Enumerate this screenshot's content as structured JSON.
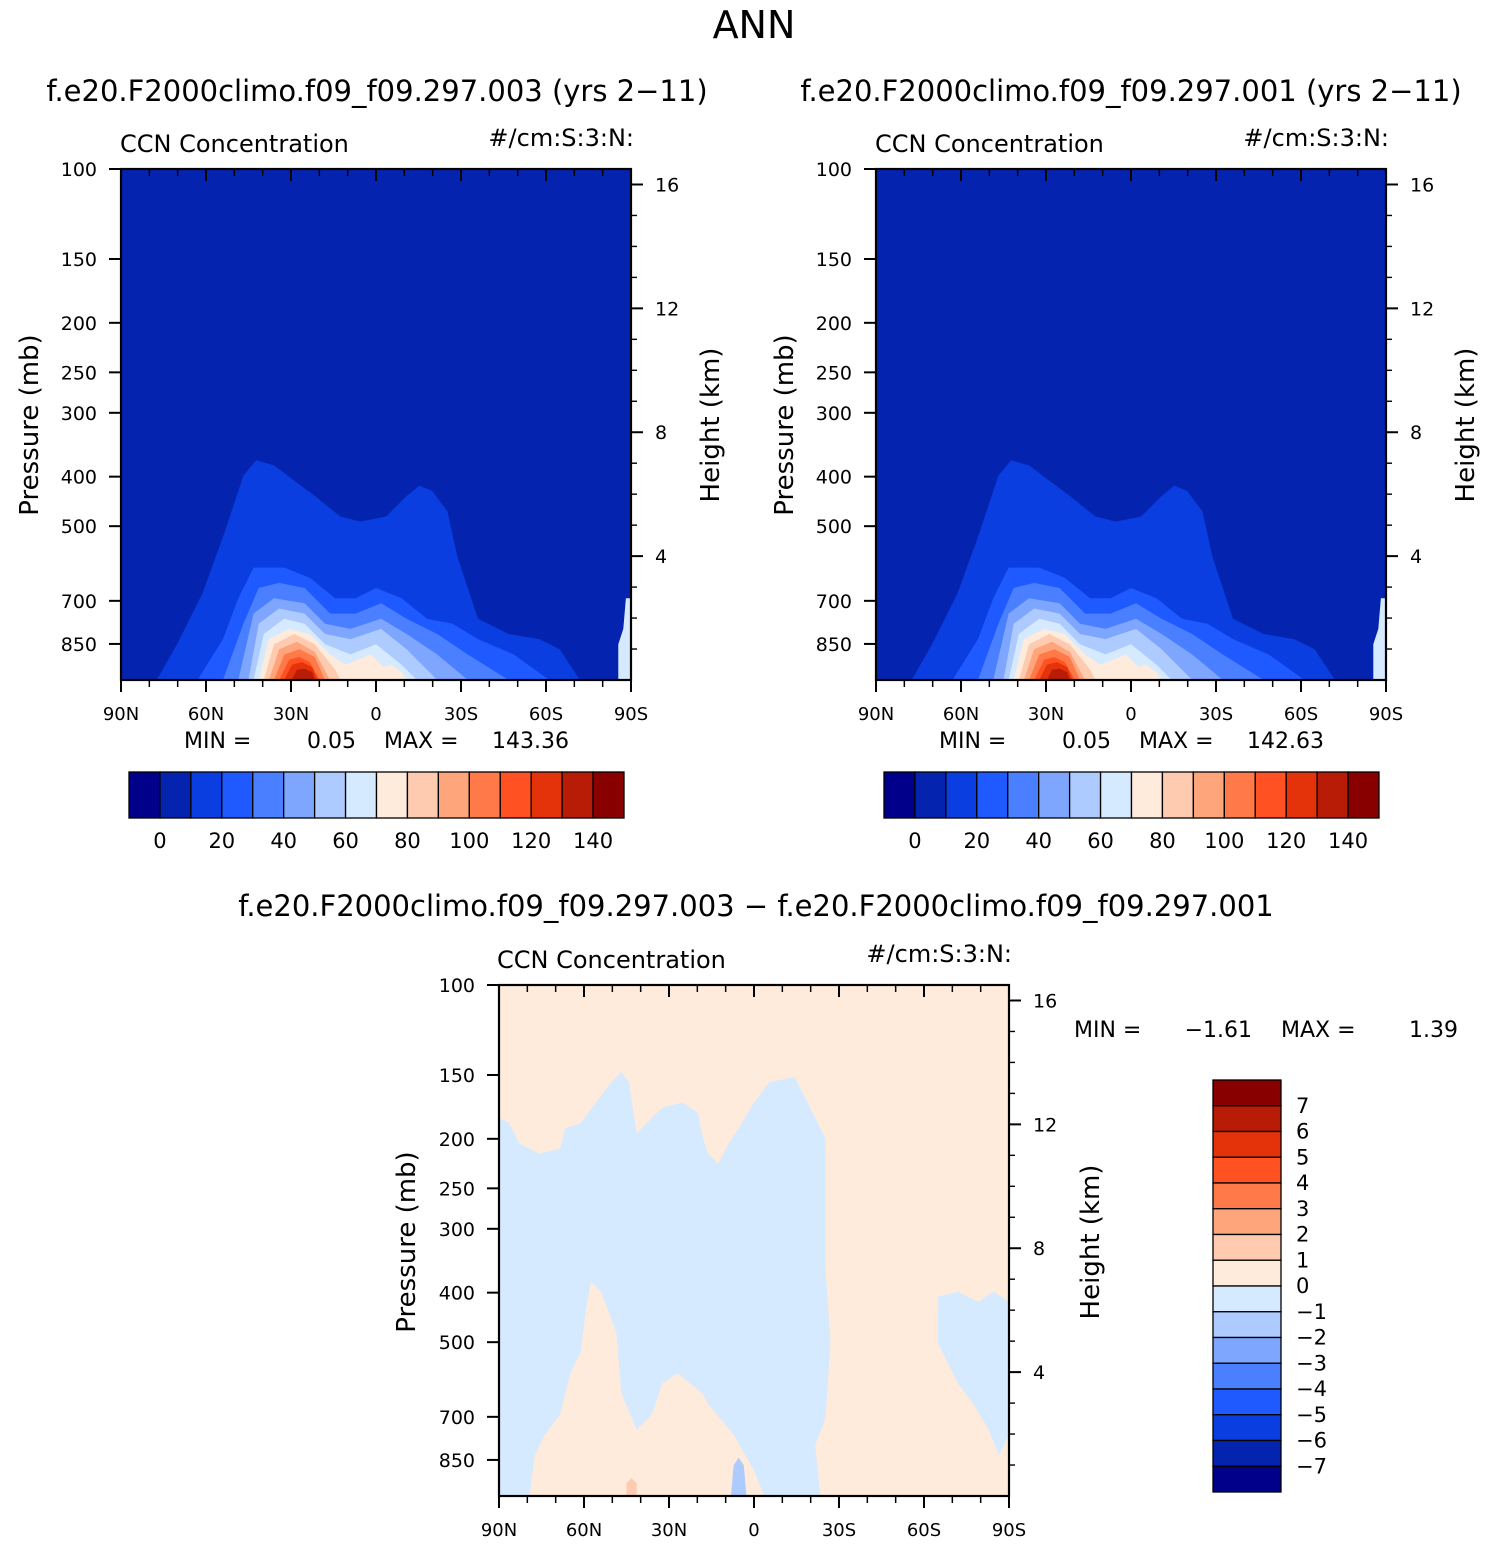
{
  "main_title": "ANN",
  "panels": [
    {
      "heading": "f.e20.F2000climo.f09_f09.297.003 (yrs 2−11)",
      "left_label": "CCN Concentration",
      "right_label": "#/cm:S:3:N:",
      "ylabel_left": "Pressure (mb)",
      "ylabel_right": "Height (km)",
      "stats": {
        "min_label": "MIN =",
        "min_value": "0.05",
        "max_label": "MAX =",
        "max_value": "143.36"
      }
    },
    {
      "heading": "f.e20.F2000climo.f09_f09.297.001 (yrs 2−11)",
      "left_label": "CCN Concentration",
      "right_label": "#/cm:S:3:N:",
      "ylabel_left": "Pressure (mb)",
      "ylabel_right": "Height (km)",
      "stats": {
        "min_label": "MIN =",
        "min_value": "0.05",
        "max_label": "MAX =",
        "max_value": "142.63"
      }
    },
    {
      "heading": "f.e20.F2000climo.f09_f09.297.003 − f.e20.F2000climo.f09_f09.297.001",
      "left_label": "CCN Concentration",
      "right_label": "#/cm:S:3:N:",
      "ylabel_left": "Pressure (mb)",
      "ylabel_right": "Height (km)",
      "stats": {
        "min_label": "MIN =",
        "min_value": "−1.61",
        "max_label": "MAX =",
        "max_value": "1.39"
      }
    }
  ],
  "colorbars": [
    {
      "colors": [
        "#00008b",
        "#0424b0",
        "#0a3ee0",
        "#1e5aff",
        "#4a80ff",
        "#7ea6ff",
        "#aecbff",
        "#d6eaff",
        "#ffebdb",
        "#ffcbb0",
        "#ffa57c",
        "#ff7a48",
        "#ff5122",
        "#e4320a",
        "#b81c07",
        "#880000"
      ],
      "labels": [
        "0",
        "20",
        "40",
        "60",
        "80",
        "100",
        "120",
        "140"
      ]
    },
    {
      "colors": [
        "#00008b",
        "#0424b0",
        "#0a3ee0",
        "#1e5aff",
        "#4a80ff",
        "#7ea6ff",
        "#aecbff",
        "#d6eaff",
        "#ffebdb",
        "#ffcbb0",
        "#ffa57c",
        "#ff7a48",
        "#ff5122",
        "#e4320a",
        "#b81c07",
        "#880000"
      ],
      "labels": [
        "0",
        "20",
        "40",
        "60",
        "80",
        "100",
        "120",
        "140"
      ]
    },
    {
      "colors": [
        "#880000",
        "#b81c07",
        "#e4320a",
        "#ff5122",
        "#ff7a48",
        "#ffa57c",
        "#ffcbb0",
        "#ffebdb",
        "#d6eaff",
        "#aecbff",
        "#7ea6ff",
        "#4a80ff",
        "#1e5aff",
        "#0a3ee0",
        "#0424b0",
        "#00008b"
      ],
      "labels": [
        "7",
        "6",
        "5",
        "4",
        "3",
        "2",
        "1",
        "0",
        "−1",
        "−2",
        "−3",
        "−4",
        "−5",
        "−6",
        "−7"
      ]
    }
  ],
  "chart_data": [
    {
      "type": "heatmap",
      "title": "f.e20.F2000climo.f09_f09.297.003 (yrs 2−11)",
      "variable": "CCN Concentration",
      "units": "#/cm:S:3:N:",
      "xlabel": "",
      "ylabel": "Pressure (mb)",
      "ylabel_right": "Height (km)",
      "x_ticks": [
        "90N",
        "60N",
        "30N",
        "0",
        "30S",
        "60S",
        "90S"
      ],
      "y_ticks": [
        100,
        150,
        200,
        250,
        300,
        400,
        500,
        700,
        850
      ],
      "y_ticks_right": [
        4,
        8,
        12,
        16
      ],
      "ylim": [
        1000,
        100
      ],
      "ylim_right": [
        0,
        16.5
      ],
      "yscale": "log",
      "min": 0.05,
      "max": 143.36,
      "levels": [
        0,
        10,
        20,
        30,
        40,
        50,
        60,
        70,
        80,
        90,
        100,
        110,
        120,
        130,
        140
      ],
      "pattern": "CCN concentrations below ~10 #/cm3 everywhere above ~350 mb; values increase toward the surface, with a maximum (~143) near 30N close to the surface and a secondary maximum near the equator/15S"
    },
    {
      "type": "heatmap",
      "title": "f.e20.F2000climo.f09_f09.297.001 (yrs 2−11)",
      "variable": "CCN Concentration",
      "units": "#/cm:S:3:N:",
      "xlabel": "",
      "ylabel": "Pressure (mb)",
      "ylabel_right": "Height (km)",
      "x_ticks": [
        "90N",
        "60N",
        "30N",
        "0",
        "30S",
        "60S",
        "90S"
      ],
      "y_ticks": [
        100,
        150,
        200,
        250,
        300,
        400,
        500,
        700,
        850
      ],
      "y_ticks_right": [
        4,
        8,
        12,
        16
      ],
      "ylim": [
        1000,
        100
      ],
      "ylim_right": [
        0,
        16.5
      ],
      "yscale": "log",
      "min": 0.05,
      "max": 142.63,
      "levels": [
        0,
        10,
        20,
        30,
        40,
        50,
        60,
        70,
        80,
        90,
        100,
        110,
        120,
        130,
        140
      ],
      "pattern": "Nearly identical to the 003 case: low-level maximum near 30N, secondary maximum near 15S"
    },
    {
      "type": "heatmap",
      "title": "f.e20.F2000climo.f09_f09.297.003 − f.e20.F2000climo.f09_f09.297.001",
      "variable": "CCN Concentration",
      "units": "#/cm:S:3:N:",
      "xlabel": "",
      "ylabel": "Pressure (mb)",
      "ylabel_right": "Height (km)",
      "x_ticks": [
        "90N",
        "60N",
        "30N",
        "0",
        "30S",
        "60S",
        "90S"
      ],
      "y_ticks": [
        100,
        150,
        200,
        250,
        300,
        400,
        500,
        700,
        850
      ],
      "y_ticks_right": [
        4,
        8,
        12,
        16
      ],
      "ylim": [
        1000,
        100
      ],
      "ylim_right": [
        0,
        16.5
      ],
      "yscale": "log",
      "min": -1.61,
      "max": 1.39,
      "levels": [
        -7,
        -6,
        -5,
        -4,
        -3,
        -2,
        -1,
        0,
        1,
        2,
        3,
        4,
        5,
        6,
        7
      ],
      "pattern": "Differences mostly between -1 and 1: slightly positive (0 to 1) in the upper troposphere and over the southern hemisphere, slightly negative (-1 to 0) over the northern hemisphere and tropics below ~150 mb"
    }
  ]
}
